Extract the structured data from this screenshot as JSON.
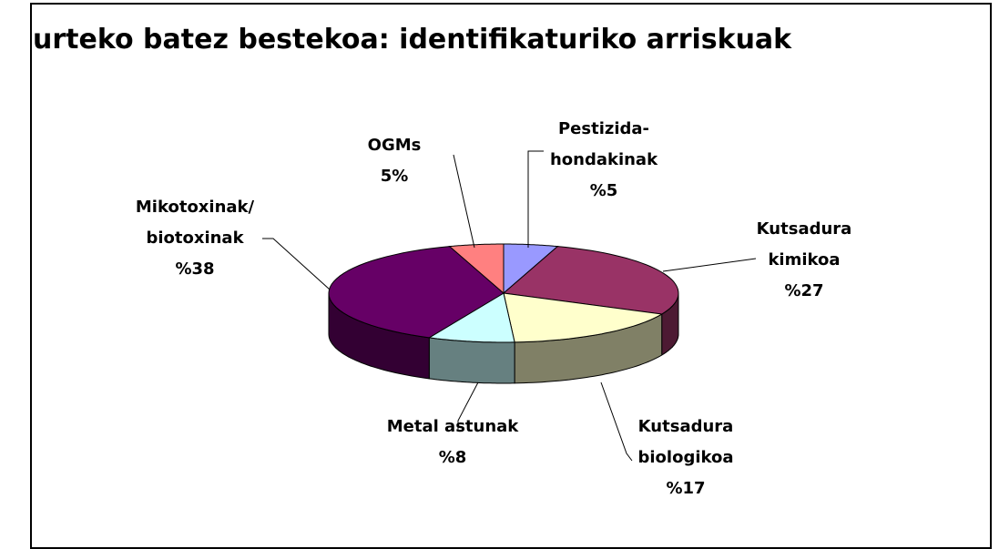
{
  "chart_data": {
    "type": "pie",
    "title": "urteko batez bestekoa: identifikaturiko arriskuak",
    "categories": [
      "Pestizida-\nhondakinak",
      "Kutsadura\nkimikoa",
      "Kutsadura\nbiologikoa",
      "Metal astunak",
      "Mikotoxinak/\nbiotoxinak",
      "OGMs"
    ],
    "values": [
      5,
      27,
      17,
      8,
      38,
      5
    ],
    "value_labels": [
      "%5",
      "%27",
      "%17",
      "%8",
      "%38",
      "5%"
    ],
    "colors": [
      "#9999ff",
      "#993366",
      "#ffffcc",
      "#ccffff",
      "#660066",
      "#ff8080"
    ]
  }
}
